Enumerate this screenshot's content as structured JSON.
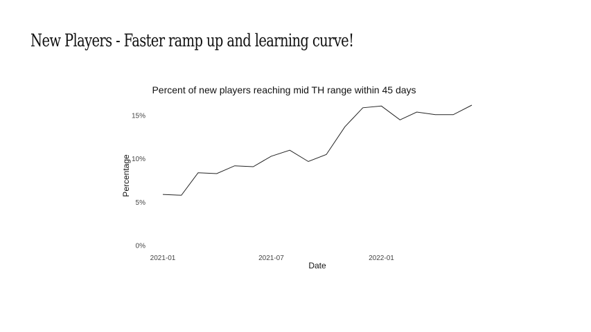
{
  "slide": {
    "title": "New Players - Faster ramp up and learning curve!"
  },
  "chart_data": {
    "type": "line",
    "title": "Percent of new players reaching mid TH range within 45 days",
    "xlabel": "Date",
    "ylabel": "Percentage",
    "x": [
      "2021-01-01",
      "2021-02-01",
      "2021-03-01",
      "2021-04-01",
      "2021-05-01",
      "2021-06-01",
      "2021-07-01",
      "2021-08-01",
      "2021-09-01",
      "2021-10-01",
      "2021-11-01",
      "2021-12-01",
      "2022-01-01",
      "2022-02-01",
      "2022-03-01",
      "2022-04-01",
      "2022-05-01",
      "2022-06-01"
    ],
    "series": [
      {
        "values": [
          5.9,
          5.8,
          8.4,
          8.3,
          9.2,
          9.1,
          10.3,
          11.0,
          9.7,
          10.5,
          13.7,
          15.9,
          16.1,
          14.5,
          15.4,
          15.1,
          15.1,
          16.2
        ],
        "color": "#222222"
      }
    ],
    "xlim": [
      "2021-01-01",
      "2022-06-01"
    ],
    "ylim": [
      0,
      16.2
    ],
    "x_ticks": [
      {
        "date": "2021-01-01",
        "label": "2021-01"
      },
      {
        "date": "2021-07-01",
        "label": "2021-07"
      },
      {
        "date": "2022-01-01",
        "label": "2022-01"
      }
    ],
    "y_ticks": [
      {
        "value": 0,
        "label": "0%"
      },
      {
        "value": 5,
        "label": "5%"
      },
      {
        "value": 10,
        "label": "10%"
      },
      {
        "value": 15,
        "label": "15%"
      }
    ],
    "grid": false,
    "legend": "none"
  }
}
